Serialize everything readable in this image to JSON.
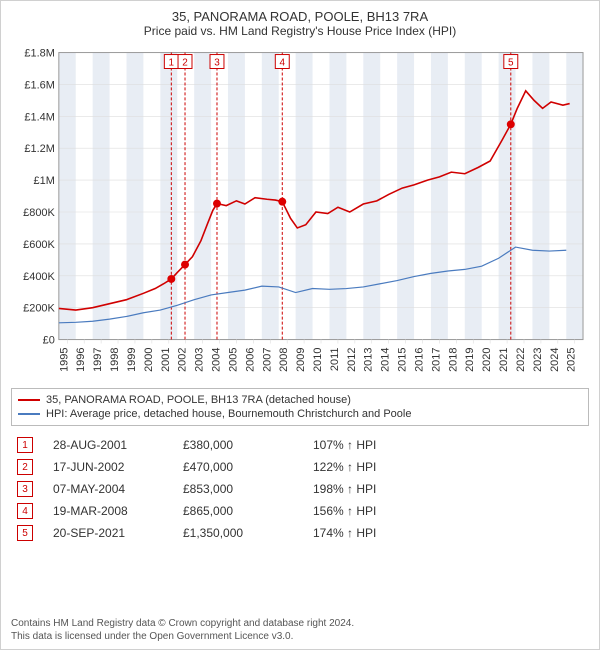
{
  "title": "35, PANORAMA ROAD, POOLE, BH13 7RA",
  "subtitle": "Price paid vs. HM Land Registry's House Price Index (HPI)",
  "chart": {
    "type": "line",
    "background_color": "#ffffff",
    "band_color": "#e8edf4",
    "grid_color": "#dddddd",
    "axis_color": "#999999",
    "label_color": "#333333",
    "label_fontsize": 11,
    "ylim": [
      0,
      1800000
    ],
    "ytick_step": 200000,
    "yticks": [
      "£0",
      "£200K",
      "£400K",
      "£600K",
      "£800K",
      "£1M",
      "£1.2M",
      "£1.4M",
      "£1.6M",
      "£1.8M"
    ],
    "xlim": [
      1995,
      2025.99
    ],
    "xticks": [
      1995,
      1996,
      1997,
      1998,
      1999,
      2000,
      2001,
      2002,
      2003,
      2004,
      2005,
      2006,
      2007,
      2008,
      2009,
      2010,
      2011,
      2012,
      2013,
      2014,
      2015,
      2016,
      2017,
      2018,
      2019,
      2020,
      2021,
      2022,
      2023,
      2024,
      2025
    ],
    "band_years": [
      1995,
      1997,
      1999,
      2001,
      2003,
      2005,
      2007,
      2009,
      2011,
      2013,
      2015,
      2017,
      2019,
      2021,
      2023,
      2025
    ],
    "series_property": {
      "color": "#d00000",
      "line_width": 1.6,
      "label": "35, PANORAMA ROAD, POOLE, BH13 7RA (detached house)",
      "points": [
        [
          1995,
          195000
        ],
        [
          1996,
          185000
        ],
        [
          1997,
          200000
        ],
        [
          1998,
          225000
        ],
        [
          1999,
          250000
        ],
        [
          2000,
          290000
        ],
        [
          2000.7,
          320000
        ],
        [
          2001.2,
          350000
        ],
        [
          2001.65,
          380000
        ],
        [
          2002,
          420000
        ],
        [
          2002.46,
          470000
        ],
        [
          2002.9,
          520000
        ],
        [
          2003.4,
          620000
        ],
        [
          2003.8,
          730000
        ],
        [
          2004.1,
          810000
        ],
        [
          2004.35,
          853000
        ],
        [
          2004.9,
          840000
        ],
        [
          2005.5,
          870000
        ],
        [
          2006,
          850000
        ],
        [
          2006.6,
          890000
        ],
        [
          2007.3,
          880000
        ],
        [
          2007.8,
          875000
        ],
        [
          2008.21,
          865000
        ],
        [
          2008.7,
          760000
        ],
        [
          2009.1,
          700000
        ],
        [
          2009.6,
          720000
        ],
        [
          2010.2,
          800000
        ],
        [
          2010.9,
          790000
        ],
        [
          2011.5,
          830000
        ],
        [
          2012.2,
          800000
        ],
        [
          2013,
          850000
        ],
        [
          2013.8,
          870000
        ],
        [
          2014.5,
          910000
        ],
        [
          2015.3,
          950000
        ],
        [
          2016,
          970000
        ],
        [
          2016.8,
          1000000
        ],
        [
          2017.5,
          1020000
        ],
        [
          2018.2,
          1050000
        ],
        [
          2019,
          1040000
        ],
        [
          2019.8,
          1080000
        ],
        [
          2020.5,
          1120000
        ],
        [
          2021.2,
          1250000
        ],
        [
          2021.72,
          1350000
        ],
        [
          2022.1,
          1450000
        ],
        [
          2022.6,
          1560000
        ],
        [
          2023.1,
          1500000
        ],
        [
          2023.6,
          1450000
        ],
        [
          2024.1,
          1490000
        ],
        [
          2024.8,
          1470000
        ],
        [
          2025.2,
          1480000
        ]
      ]
    },
    "series_hpi": {
      "color": "#4a7bbf",
      "line_width": 1.2,
      "label": "HPI: Average price, detached house, Bournemouth Christchurch and Poole",
      "points": [
        [
          1995,
          105000
        ],
        [
          1996,
          108000
        ],
        [
          1997,
          115000
        ],
        [
          1998,
          128000
        ],
        [
          1999,
          145000
        ],
        [
          2000,
          168000
        ],
        [
          2001,
          185000
        ],
        [
          2002,
          215000
        ],
        [
          2003,
          250000
        ],
        [
          2004,
          280000
        ],
        [
          2005,
          295000
        ],
        [
          2006,
          310000
        ],
        [
          2007,
          335000
        ],
        [
          2008,
          330000
        ],
        [
          2009,
          295000
        ],
        [
          2010,
          320000
        ],
        [
          2011,
          315000
        ],
        [
          2012,
          320000
        ],
        [
          2013,
          330000
        ],
        [
          2014,
          350000
        ],
        [
          2015,
          370000
        ],
        [
          2016,
          395000
        ],
        [
          2017,
          415000
        ],
        [
          2018,
          430000
        ],
        [
          2019,
          440000
        ],
        [
          2020,
          460000
        ],
        [
          2021,
          510000
        ],
        [
          2022,
          580000
        ],
        [
          2023,
          560000
        ],
        [
          2024,
          555000
        ],
        [
          2025,
          560000
        ]
      ]
    },
    "markers": [
      {
        "n": 1,
        "year": 2001.65,
        "value": 380000
      },
      {
        "n": 2,
        "year": 2002.46,
        "value": 470000
      },
      {
        "n": 3,
        "year": 2004.35,
        "value": 853000
      },
      {
        "n": 4,
        "year": 2008.21,
        "value": 865000
      },
      {
        "n": 5,
        "year": 2021.72,
        "value": 1350000
      }
    ],
    "marker_line_color": "#cc0000",
    "marker_box_stroke": "#cc0000",
    "marker_box_fill": "#ffffff",
    "point_color": "#d00000"
  },
  "legend": {
    "rows": [
      {
        "color": "#d00000",
        "label": "35, PANORAMA ROAD, POOLE, BH13 7RA (detached house)"
      },
      {
        "color": "#4a7bbf",
        "label": "HPI: Average price, detached house, Bournemouth Christchurch and Poole"
      }
    ]
  },
  "tx_table": {
    "rows": [
      {
        "n": "1",
        "date": "28-AUG-2001",
        "price": "£380,000",
        "pct": "107% ↑ HPI"
      },
      {
        "n": "2",
        "date": "17-JUN-2002",
        "price": "£470,000",
        "pct": "122% ↑ HPI"
      },
      {
        "n": "3",
        "date": "07-MAY-2004",
        "price": "£853,000",
        "pct": "198% ↑ HPI"
      },
      {
        "n": "4",
        "date": "19-MAR-2008",
        "price": "£865,000",
        "pct": "156% ↑ HPI"
      },
      {
        "n": "5",
        "date": "20-SEP-2021",
        "price": "£1,350,000",
        "pct": "174% ↑ HPI"
      }
    ]
  },
  "footer": {
    "line1": "Contains HM Land Registry data © Crown copyright and database right 2024.",
    "line2": "This data is licensed under the Open Government Licence v3.0."
  }
}
